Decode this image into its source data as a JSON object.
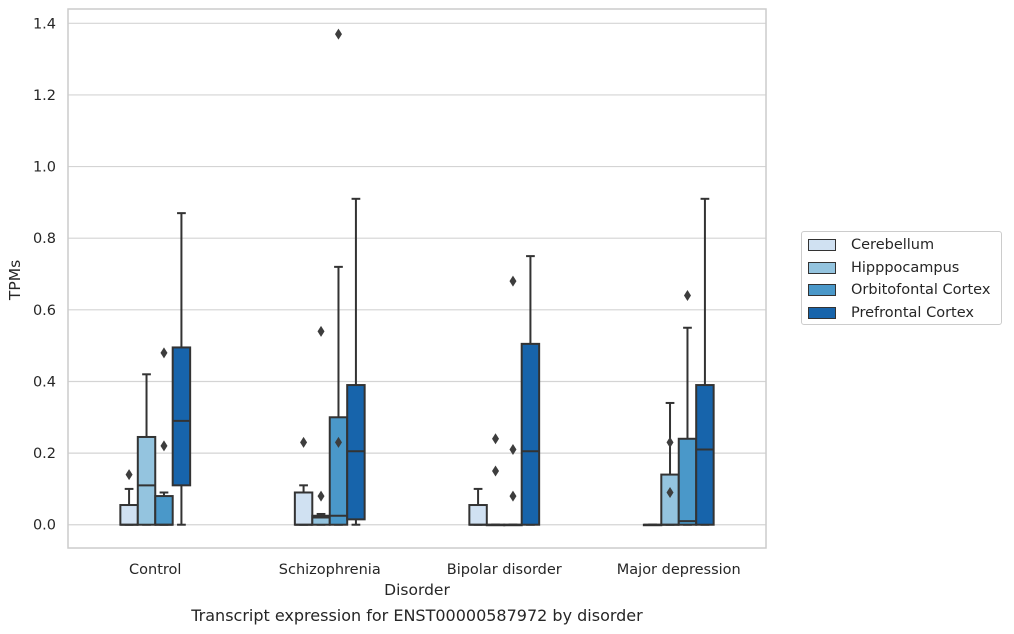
{
  "chart_data": {
    "type": "box",
    "title": "Transcript expression for ENST00000587972 by disorder",
    "xlabel": "Disorder",
    "ylabel": "TPMs",
    "ylim": [
      -0.065,
      1.44
    ],
    "yticks": [
      "0.0",
      "0.2",
      "0.4",
      "0.6",
      "0.8",
      "1.0",
      "1.2",
      "1.4"
    ],
    "categories": [
      "Control",
      "Schizophrenia",
      "Bipolar disorder",
      "Major depression"
    ],
    "grid": "horizontal",
    "legend_position": "right",
    "series": [
      {
        "name": "Cerebellum",
        "color": "#d0e1f2",
        "boxes": [
          {
            "whisker_low": 0.0,
            "q1": 0.0,
            "median": 0.0,
            "q3": 0.055,
            "whisker_high": 0.1,
            "outliers": [
              0.14
            ]
          },
          {
            "whisker_low": 0.0,
            "q1": 0.0,
            "median": 0.0,
            "q3": 0.09,
            "whisker_high": 0.11,
            "outliers": [
              0.23
            ]
          },
          {
            "whisker_low": 0.0,
            "q1": 0.0,
            "median": 0.0,
            "q3": 0.055,
            "whisker_high": 0.1,
            "outliers": []
          },
          {
            "whisker_low": 0.0,
            "q1": 0.0,
            "median": 0.0,
            "q3": 0.0,
            "whisker_high": 0.0,
            "outliers": []
          }
        ]
      },
      {
        "name": "Hipppocampus",
        "color": "#94c4df",
        "boxes": [
          {
            "whisker_low": 0.0,
            "q1": 0.0,
            "median": 0.11,
            "q3": 0.245,
            "whisker_high": 0.42,
            "outliers": []
          },
          {
            "whisker_low": 0.0,
            "q1": 0.0,
            "median": 0.02,
            "q3": 0.025,
            "whisker_high": 0.03,
            "outliers": [
              0.08,
              0.54
            ]
          },
          {
            "whisker_low": 0.0,
            "q1": 0.0,
            "median": 0.0,
            "q3": 0.0,
            "whisker_high": 0.0,
            "outliers": [
              0.15,
              0.24
            ]
          },
          {
            "whisker_low": 0.0,
            "q1": 0.0,
            "median": 0.0,
            "q3": 0.14,
            "whisker_high": 0.34,
            "outliers": [
              0.09,
              0.23
            ]
          }
        ]
      },
      {
        "name": "Orbitofontal Cortex",
        "color": "#4a98c9",
        "boxes": [
          {
            "whisker_low": 0.0,
            "q1": 0.0,
            "median": 0.0,
            "q3": 0.08,
            "whisker_high": 0.09,
            "outliers": [
              0.22,
              0.48
            ]
          },
          {
            "whisker_low": 0.0,
            "q1": 0.0,
            "median": 0.025,
            "q3": 0.3,
            "whisker_high": 0.72,
            "outliers": [
              0.23,
              1.37
            ]
          },
          {
            "whisker_low": 0.0,
            "q1": 0.0,
            "median": 0.0,
            "q3": 0.0,
            "whisker_high": 0.0,
            "outliers": [
              0.08,
              0.21,
              0.68
            ]
          },
          {
            "whisker_low": 0.0,
            "q1": 0.0,
            "median": 0.01,
            "q3": 0.24,
            "whisker_high": 0.55,
            "outliers": [
              0.64
            ]
          }
        ]
      },
      {
        "name": "Prefrontal Cortex",
        "color": "#1764ab",
        "boxes": [
          {
            "whisker_low": 0.0,
            "q1": 0.11,
            "median": 0.29,
            "q3": 0.495,
            "whisker_high": 0.87,
            "outliers": []
          },
          {
            "whisker_low": 0.0,
            "q1": 0.015,
            "median": 0.205,
            "q3": 0.39,
            "whisker_high": 0.91,
            "outliers": []
          },
          {
            "whisker_low": 0.0,
            "q1": 0.0,
            "median": 0.205,
            "q3": 0.505,
            "whisker_high": 0.75,
            "outliers": []
          },
          {
            "whisker_low": 0.0,
            "q1": 0.0,
            "median": 0.21,
            "q3": 0.39,
            "whisker_high": 0.91,
            "outliers": []
          }
        ]
      }
    ]
  }
}
